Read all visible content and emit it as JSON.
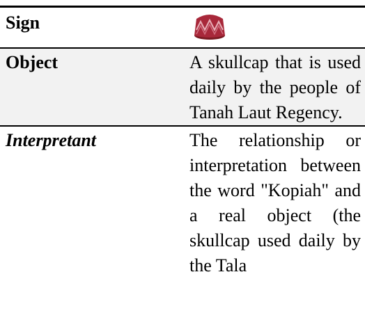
{
  "table": {
    "rows": [
      {
        "label": "Sign"
      },
      {
        "label": "Object",
        "text": "A skullcap that is used daily by the people of Tanah Laut Regency."
      },
      {
        "label": "Interpretant",
        "text": "The relationship or interpretation between the word \"Kopiah\" and a real object (the skullcap used daily by the Tala"
      }
    ]
  }
}
